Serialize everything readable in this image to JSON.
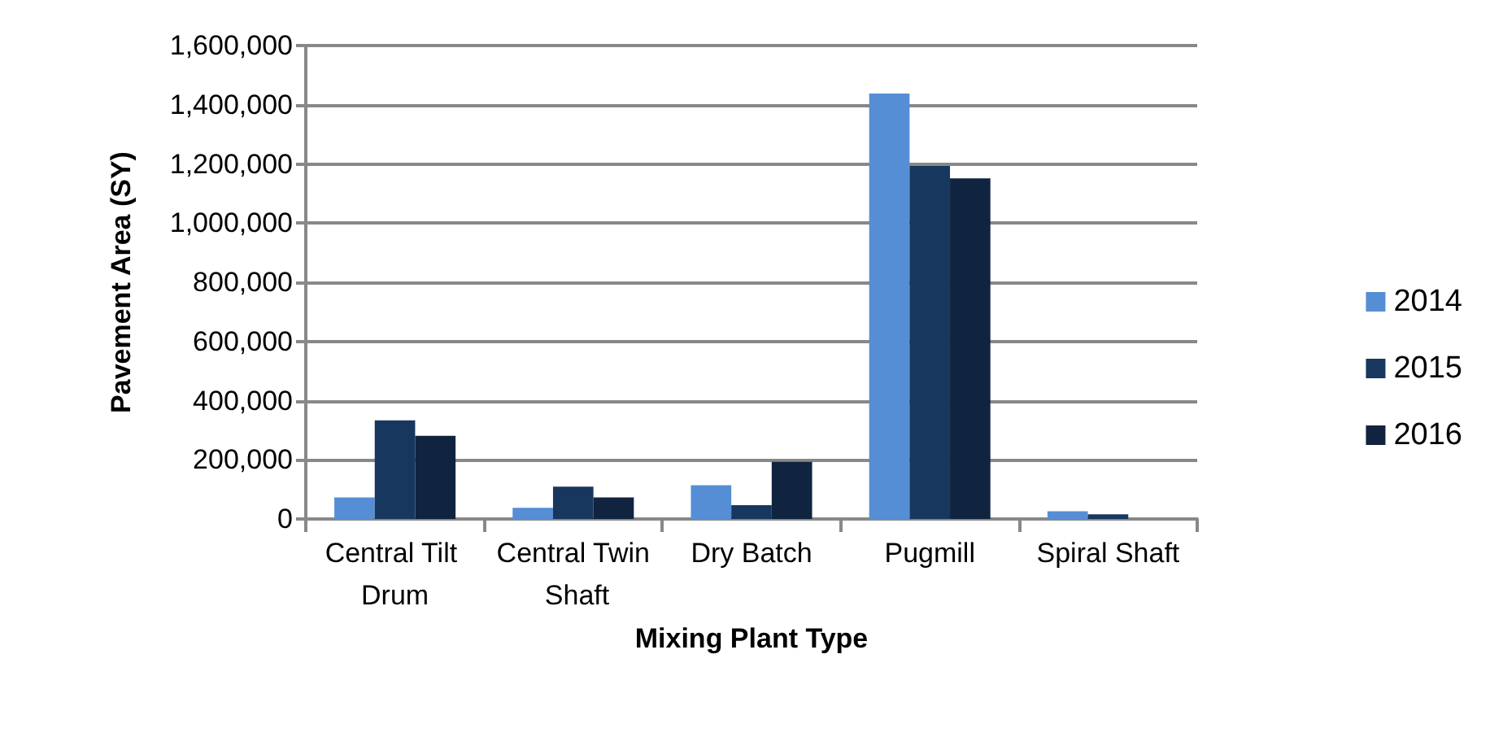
{
  "chart_data": {
    "type": "bar",
    "xlabel": "Mixing Plant Type",
    "ylabel": "Pavement Area (SY)",
    "categories": [
      "Central Tilt Drum",
      "Central Twin Shaft",
      "Dry Batch",
      "Pugmill",
      "Spiral Shaft"
    ],
    "series": [
      {
        "name": "2014",
        "color": "#558ed5",
        "values": [
          73000,
          38000,
          114000,
          1438000,
          26000
        ]
      },
      {
        "name": "2015",
        "color": "#17375e",
        "values": [
          333000,
          109000,
          47000,
          1193000,
          16000
        ]
      },
      {
        "name": "2016",
        "color": "#10243f",
        "values": [
          281000,
          73000,
          193000,
          1151000,
          0
        ]
      }
    ],
    "ylim": [
      0,
      1600000
    ],
    "yticks": [
      0,
      {
        "value": 200000,
        "label": "200,000"
      },
      {
        "value": 400000,
        "label": "400,000"
      },
      {
        "value": 600000,
        "label": "600,000"
      },
      {
        "value": 800000,
        "label": "800,000"
      },
      {
        "value": 1000000,
        "label": "1,000,000"
      },
      {
        "value": 1200000,
        "label": "1,200,000"
      },
      {
        "value": 1400000,
        "label": "1,400,000"
      },
      {
        "value": 1600000,
        "label": "1,600,000"
      }
    ],
    "grid": "y",
    "legend": "right"
  }
}
